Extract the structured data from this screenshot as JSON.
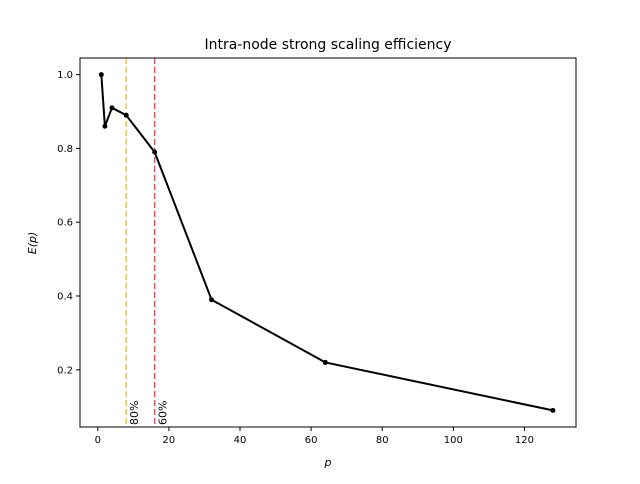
{
  "chart_data": {
    "type": "line",
    "title": "Intra-node strong scaling efficiency",
    "xlabel": "p",
    "ylabel": "E(p)",
    "xlim": [
      -5,
      134.5
    ],
    "ylim": [
      0.045,
      1.045
    ],
    "xticks": [
      0,
      20,
      40,
      60,
      80,
      100,
      120
    ],
    "yticks": [
      0.2,
      0.4,
      0.6,
      0.8,
      1.0
    ],
    "ytick_labels": [
      "0.2",
      "0.4",
      "0.6",
      "0.8",
      "1.0"
    ],
    "grid": false,
    "legend": "none",
    "series": [
      {
        "color": "#000000",
        "x": [
          1,
          2,
          4,
          8,
          16,
          32,
          64,
          128
        ],
        "y": [
          1.0,
          0.86,
          0.91,
          0.89,
          0.79,
          0.39,
          0.22,
          0.09
        ]
      }
    ],
    "vlines": [
      {
        "x": 8,
        "label": "80%",
        "color": "#f5c433"
      },
      {
        "x": 16,
        "label": "60%",
        "color": "#e05060"
      }
    ]
  }
}
